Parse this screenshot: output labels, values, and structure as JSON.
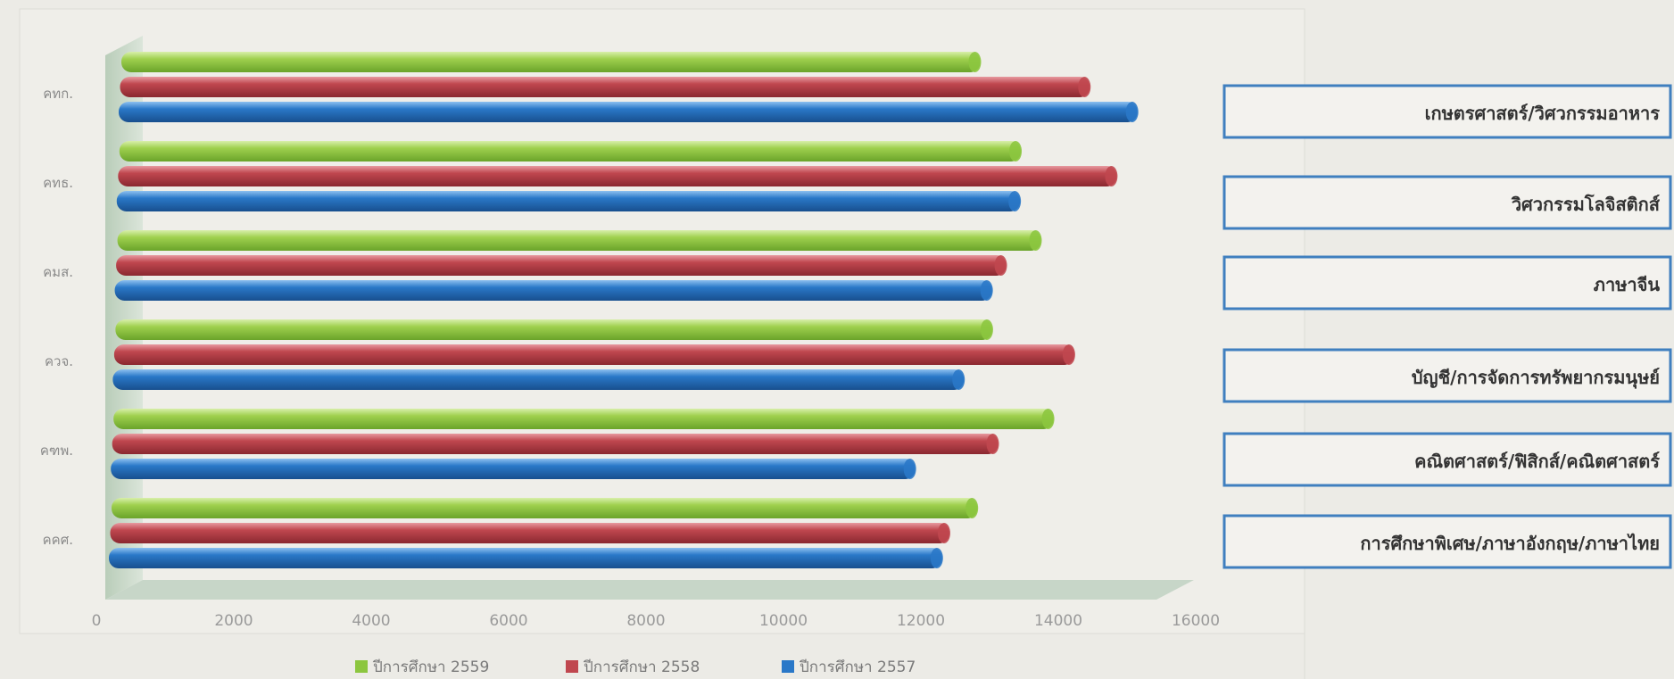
{
  "chart_data": {
    "type": "bar",
    "orientation": "horizontal",
    "categories": [
      "คทก.",
      "คทธ.",
      "คมส.",
      "ควจ.",
      "คฑพ.",
      "คคศ."
    ],
    "series": [
      {
        "name": "ปีการศึกษา 2559",
        "color": "#8cc63f",
        "values": [
          12500,
          13100,
          13400,
          12700,
          13600,
          12500
        ]
      },
      {
        "name": "ปีการศึกษา 2558",
        "color": "#c0474f",
        "values": [
          14100,
          14500,
          12900,
          13900,
          12800,
          12100
        ]
      },
      {
        "name": "ปีการศึกษา 2557",
        "color": "#2a78c8",
        "values": [
          14800,
          13100,
          12700,
          12300,
          11600,
          12000
        ]
      }
    ],
    "xlim": [
      0,
      16000
    ],
    "xticks": [
      "0",
      "2000",
      "4000",
      "6000",
      "8000",
      "10000",
      "12000",
      "14000",
      "16000"
    ],
    "legend_position": "bottom",
    "group_labels": [
      "เกษตรศาสตร์/วิศวกรรมอาหาร",
      "วิศวกรรมโลจิสติกส์",
      "ภาษาจีน",
      "บัญชี/การจัดการทรัพยากรมนุษย์",
      "คณิตศาสตร์/ฟิสิกส์/คณิตศาสตร์",
      "การศึกษาพิเศษ/ภาษาอังกฤษ/ภาษาไทย"
    ],
    "colors": {
      "background": "#ecebe6",
      "box_border": "#3f7fbf",
      "floor": "#c7d6c8"
    }
  }
}
